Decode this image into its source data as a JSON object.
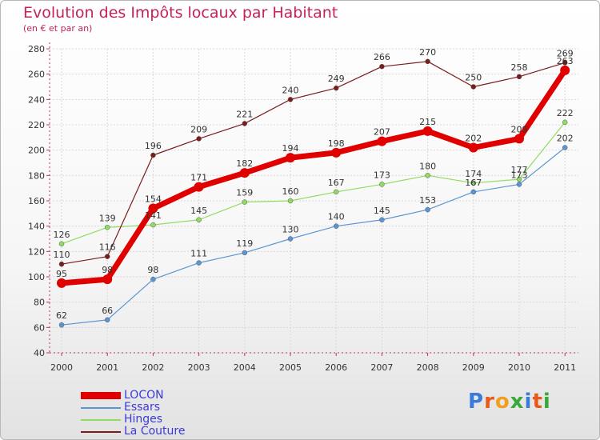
{
  "chart_data": {
    "type": "line",
    "title": "Evolution des Impôts locaux par Habitant",
    "subtitle": "(en € et par an)",
    "x": [
      "2000",
      "2001",
      "2002",
      "2003",
      "2004",
      "2005",
      "2006",
      "2007",
      "2008",
      "2009",
      "2010",
      "2011"
    ],
    "ylim": [
      40,
      280
    ],
    "yticks": [
      40,
      60,
      80,
      100,
      120,
      140,
      160,
      180,
      200,
      220,
      240,
      260,
      280
    ],
    "grid": true,
    "legend_position": "bottom-left",
    "series": [
      {
        "name": "LOCON",
        "color": "#e00000",
        "values": [
          95,
          98,
          154,
          171,
          182,
          194,
          198,
          207,
          215,
          202,
          209,
          263
        ]
      },
      {
        "name": "Essars",
        "color": "#5a96d2",
        "values": [
          62,
          66,
          98,
          111,
          119,
          130,
          140,
          145,
          153,
          167,
          173,
          202
        ]
      },
      {
        "name": "Hinges",
        "color": "#90dc60",
        "values": [
          126,
          139,
          141,
          145,
          159,
          160,
          167,
          173,
          180,
          174,
          177,
          222
        ]
      },
      {
        "name": "La Couture",
        "color": "#7a1c1c",
        "values": [
          110,
          116,
          196,
          209,
          221,
          240,
          249,
          266,
          270,
          250,
          258,
          269
        ]
      }
    ]
  },
  "brand": {
    "letters": [
      "P",
      "r",
      "o",
      "x",
      "i",
      "t",
      "i"
    ],
    "colors": [
      "#3a7ad8",
      "#e85a1a",
      "#f0a020",
      "#3aa83a",
      "#3a7ad8",
      "#e85a1a",
      "#3aa83a"
    ]
  }
}
